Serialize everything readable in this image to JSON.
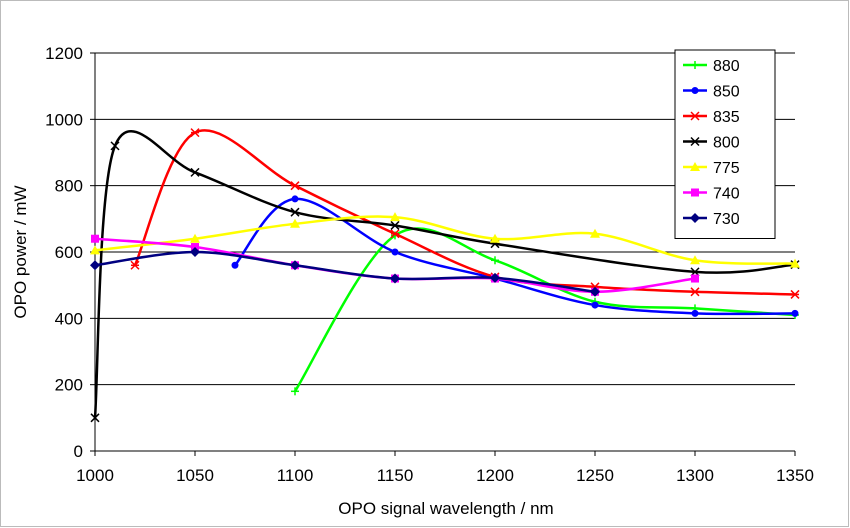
{
  "chart_data": {
    "type": "line",
    "title": "",
    "xlabel": "OPO signal wavelength / nm",
    "ylabel": "OPO power / mW",
    "xlim": [
      1000,
      1350
    ],
    "ylim": [
      0,
      1200
    ],
    "xticks": [
      1000,
      1050,
      1100,
      1150,
      1200,
      1250,
      1300,
      1350
    ],
    "yticks": [
      0,
      200,
      400,
      600,
      800,
      1000,
      1200
    ],
    "grid": "horizontal",
    "legend": "top-right",
    "series": [
      {
        "name": "880",
        "color": "#00ff00",
        "marker": "plus",
        "points": [
          [
            1100,
            180
          ],
          [
            1150,
            650
          ],
          [
            1200,
            575
          ],
          [
            1250,
            450
          ],
          [
            1300,
            430
          ],
          [
            1350,
            410
          ]
        ]
      },
      {
        "name": "850",
        "color": "#0000ff",
        "marker": "circle",
        "points": [
          [
            1070,
            560
          ],
          [
            1100,
            760
          ],
          [
            1150,
            600
          ],
          [
            1200,
            520
          ],
          [
            1250,
            440
          ],
          [
            1300,
            415
          ],
          [
            1350,
            415
          ]
        ]
      },
      {
        "name": "835",
        "color": "#ff0000",
        "marker": "asterisk",
        "points": [
          [
            1020,
            560
          ],
          [
            1050,
            960
          ],
          [
            1100,
            800
          ],
          [
            1150,
            655
          ],
          [
            1200,
            525
          ],
          [
            1250,
            495
          ],
          [
            1300,
            480
          ],
          [
            1350,
            472
          ]
        ]
      },
      {
        "name": "800",
        "color": "#000000",
        "marker": "x",
        "points": [
          [
            1000,
            100
          ],
          [
            1010,
            920
          ],
          [
            1050,
            840
          ],
          [
            1100,
            720
          ],
          [
            1150,
            680
          ],
          [
            1200,
            625
          ],
          [
            1300,
            540
          ],
          [
            1350,
            562
          ]
        ]
      },
      {
        "name": "775",
        "color": "#ffff00",
        "marker": "triangle",
        "points": [
          [
            1000,
            605
          ],
          [
            1050,
            640
          ],
          [
            1100,
            685
          ],
          [
            1150,
            705
          ],
          [
            1200,
            640
          ],
          [
            1250,
            655
          ],
          [
            1300,
            575
          ],
          [
            1350,
            565
          ]
        ]
      },
      {
        "name": "740",
        "color": "#ff00ff",
        "marker": "square",
        "points": [
          [
            1000,
            640
          ],
          [
            1050,
            615
          ],
          [
            1100,
            560
          ],
          [
            1150,
            520
          ],
          [
            1200,
            520
          ],
          [
            1250,
            480
          ],
          [
            1300,
            520
          ]
        ]
      },
      {
        "name": "730",
        "color": "#000080",
        "marker": "diamond",
        "points": [
          [
            1000,
            560
          ],
          [
            1050,
            600
          ],
          [
            1100,
            560
          ],
          [
            1150,
            520
          ],
          [
            1200,
            522
          ],
          [
            1250,
            480
          ]
        ]
      }
    ]
  }
}
